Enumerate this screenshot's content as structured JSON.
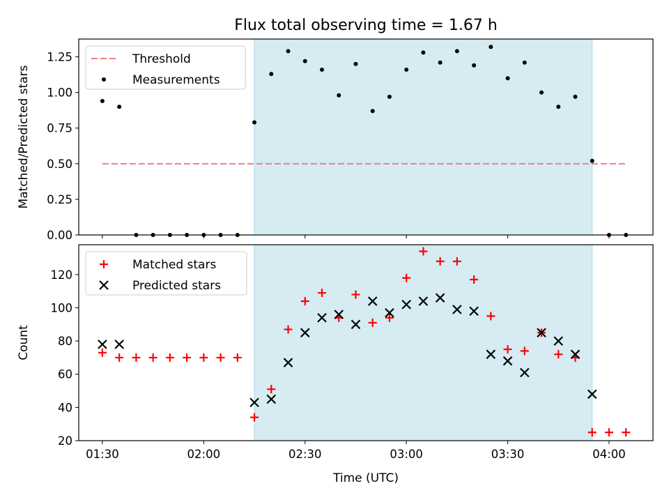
{
  "figure": {
    "title": "Flux total observing time = 1.67 h",
    "xlabel": "Time (UTC)"
  },
  "colors": {
    "threshold": "#f08080",
    "measurement": "#000000",
    "matched": "#ff0000",
    "predicted": "#000000",
    "span_fill": "#add8e6"
  },
  "chart_data": [
    {
      "type": "scatter",
      "ylabel": "Matched/Predicted stars",
      "ylim": [
        0,
        1.375
      ],
      "yticks": [
        0,
        0.25,
        0.5,
        0.75,
        1.0,
        1.25
      ],
      "ytick_labels": [
        "0.00",
        "0.25",
        "0.50",
        "0.75",
        "1.00",
        "1.25"
      ],
      "xlim": [
        "01:23",
        "04:13"
      ],
      "highlight_span": [
        "02:15",
        "03:55"
      ],
      "legend": {
        "placement": "top-left",
        "entries": [
          "Threshold",
          "Measurements"
        ]
      },
      "threshold": {
        "name": "Threshold",
        "y": 0.5,
        "x": [
          "01:30",
          "04:05"
        ]
      },
      "series": [
        {
          "name": "Measurements",
          "x": [
            "01:30",
            "01:35",
            "01:40",
            "01:45",
            "01:50",
            "01:55",
            "02:00",
            "02:05",
            "02:10",
            "02:15",
            "02:20",
            "02:25",
            "02:30",
            "02:35",
            "02:40",
            "02:45",
            "02:50",
            "02:55",
            "03:00",
            "03:05",
            "03:10",
            "03:15",
            "03:20",
            "03:25",
            "03:30",
            "03:35",
            "03:40",
            "03:45",
            "03:50",
            "03:55",
            "04:00",
            "04:05"
          ],
          "y": [
            0.94,
            0.9,
            0,
            0,
            0,
            0,
            0,
            0,
            0,
            0.79,
            1.13,
            1.29,
            1.22,
            1.16,
            0.98,
            1.2,
            0.87,
            0.97,
            1.16,
            1.28,
            1.21,
            1.29,
            1.19,
            1.32,
            1.1,
            1.21,
            1.0,
            0.9,
            0.97,
            0.52,
            0,
            0
          ]
        }
      ]
    },
    {
      "type": "scatter",
      "ylabel": "Count",
      "ylim": [
        20,
        138
      ],
      "yticks": [
        20,
        40,
        60,
        80,
        100,
        120
      ],
      "ytick_labels": [
        "20",
        "40",
        "60",
        "80",
        "100",
        "120"
      ],
      "xlim": [
        "01:23",
        "04:13"
      ],
      "xticks": [
        "01:30",
        "02:00",
        "02:30",
        "03:00",
        "03:30",
        "04:00"
      ],
      "highlight_span": [
        "02:15",
        "03:55"
      ],
      "legend": {
        "placement": "top-left",
        "entries": [
          "Matched stars",
          "Predicted stars"
        ]
      },
      "series": [
        {
          "name": "Matched stars",
          "marker": "plus",
          "x": [
            "01:30",
            "01:35",
            "01:40",
            "01:45",
            "01:50",
            "01:55",
            "02:00",
            "02:05",
            "02:10",
            "02:15",
            "02:20",
            "02:25",
            "02:30",
            "02:35",
            "02:40",
            "02:45",
            "02:50",
            "02:55",
            "03:00",
            "03:05",
            "03:10",
            "03:15",
            "03:20",
            "03:25",
            "03:30",
            "03:35",
            "03:40",
            "03:45",
            "03:50",
            "03:55",
            "04:00",
            "04:05"
          ],
          "y": [
            73,
            70,
            70,
            70,
            70,
            70,
            70,
            70,
            70,
            34,
            51,
            87,
            104,
            109,
            94,
            108,
            91,
            94,
            118,
            134,
            128,
            128,
            117,
            95,
            75,
            74,
            85,
            72,
            70,
            25,
            25,
            25
          ]
        },
        {
          "name": "Predicted stars",
          "marker": "x",
          "x": [
            "01:30",
            "01:35",
            "02:15",
            "02:20",
            "02:25",
            "02:30",
            "02:35",
            "02:40",
            "02:45",
            "02:50",
            "02:55",
            "03:00",
            "03:05",
            "03:10",
            "03:15",
            "03:20",
            "03:25",
            "03:30",
            "03:35",
            "03:40",
            "03:45",
            "03:50",
            "03:55"
          ],
          "y": [
            78,
            78,
            43,
            45,
            67,
            85,
            94,
            96,
            90,
            104,
            97,
            102,
            104,
            106,
            99,
            98,
            72,
            68,
            61,
            85,
            80,
            72,
            48
          ]
        }
      ]
    }
  ]
}
